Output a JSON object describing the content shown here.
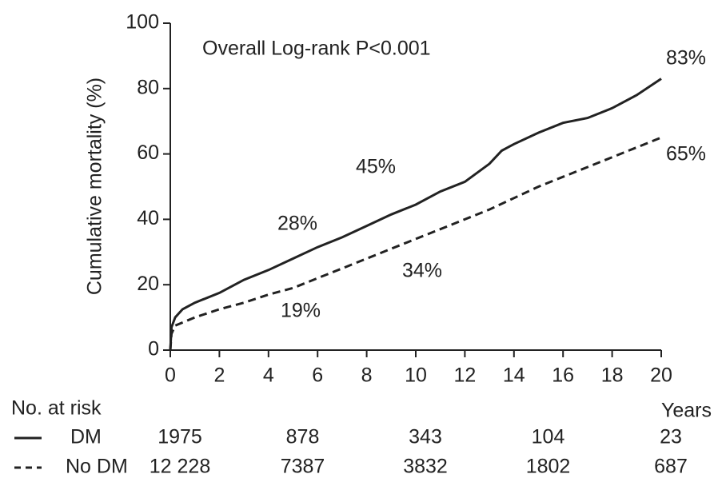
{
  "chart_data": {
    "type": "line",
    "ylabel": "Cumulative mortality (%)",
    "xlabel": "Years",
    "xlim": [
      0,
      20
    ],
    "xticks": [
      0,
      2,
      4,
      6,
      8,
      10,
      12,
      14,
      16,
      18,
      20
    ],
    "ylim": [
      0,
      100
    ],
    "yticks": [
      0,
      20,
      40,
      60,
      80,
      100
    ],
    "series": [
      {
        "name": "DM",
        "color": "#222222",
        "dashed": false,
        "x": [
          0,
          0.05,
          0.2,
          0.5,
          1,
          2,
          3,
          4,
          5,
          6,
          7,
          8,
          9,
          10,
          11,
          12,
          13,
          13.5,
          14,
          15,
          16,
          17,
          18,
          19,
          20
        ],
        "values": [
          0,
          7,
          10,
          12.5,
          14.5,
          17.5,
          21.5,
          24.5,
          28,
          31.5,
          34.5,
          38,
          41.5,
          44.5,
          48.5,
          51.5,
          57,
          61,
          63,
          66.5,
          69.5,
          71,
          74,
          78,
          83
        ]
      },
      {
        "name": "No DM",
        "color": "#222222",
        "dashed": true,
        "x": [
          0,
          0.05,
          0.2,
          1,
          2,
          3,
          4,
          5,
          6,
          7,
          8,
          9,
          10,
          11,
          12,
          13,
          14,
          15,
          16,
          17,
          18,
          19,
          20
        ],
        "values": [
          0,
          5,
          7.5,
          10,
          12.5,
          14.5,
          17,
          19,
          22,
          25,
          28,
          31,
          34,
          37,
          40,
          43,
          46.5,
          50,
          53,
          56,
          59,
          62,
          65
        ]
      }
    ],
    "annotations": [
      {
        "text": "Overall Log-rank P<0.001"
      },
      {
        "text": "83%"
      },
      {
        "text": "65%"
      },
      {
        "text": "45%"
      },
      {
        "text": "34%"
      },
      {
        "text": "28%"
      },
      {
        "text": "19%"
      }
    ],
    "risk_table": {
      "title": "No. at risk",
      "times": [
        0,
        5,
        10,
        15,
        20
      ],
      "rows": [
        {
          "name": "DM",
          "values": [
            1975,
            878,
            343,
            104,
            23
          ]
        },
        {
          "name": "No  DM",
          "values": [
            12228,
            7387,
            3832,
            1802,
            687
          ],
          "value_labels": [
            "12 228",
            "7387",
            "3832",
            "1802",
            "687"
          ]
        }
      ]
    }
  }
}
